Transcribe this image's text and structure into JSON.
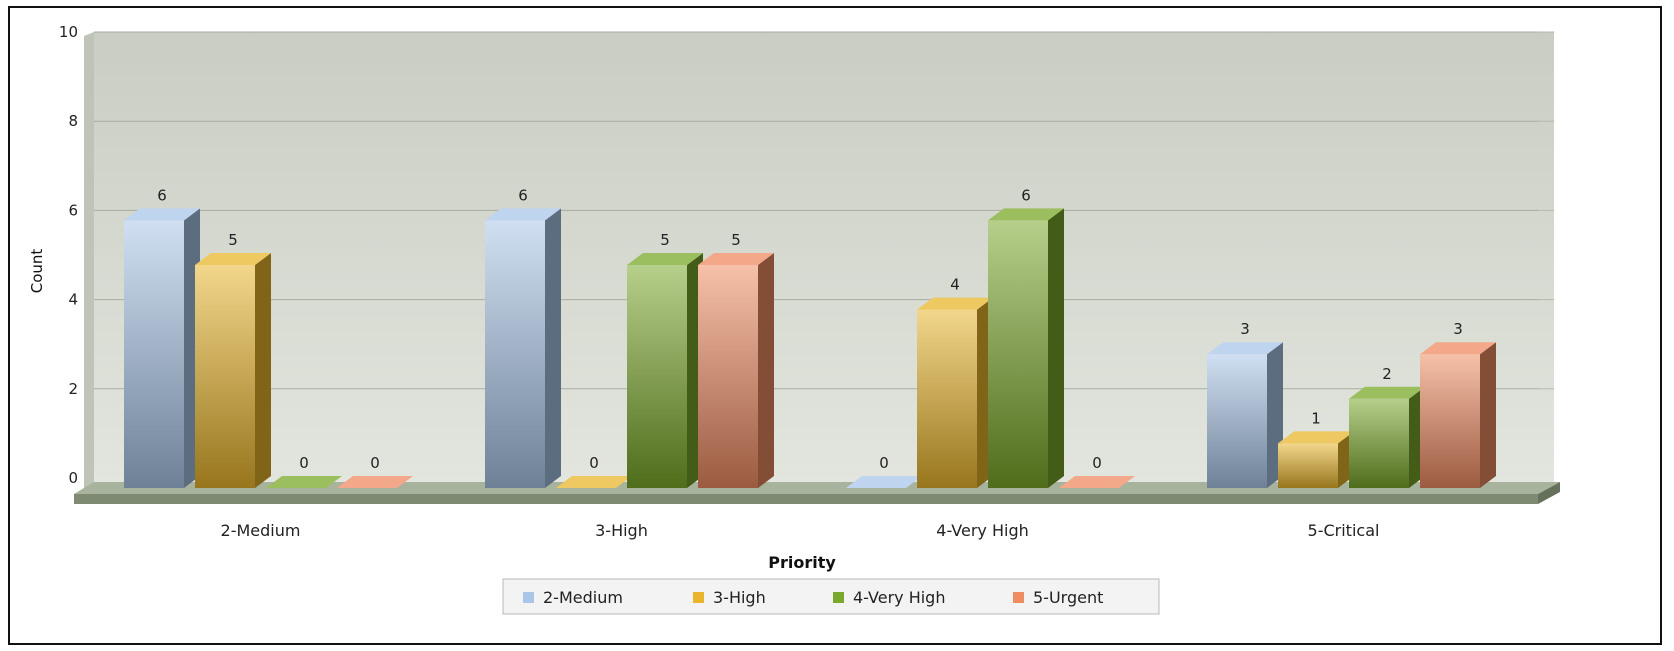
{
  "chart_data": {
    "type": "bar",
    "title": "",
    "xlabel": "Priority",
    "ylabel": "Count",
    "ylim": [
      0,
      10
    ],
    "yticks": [
      0,
      2,
      4,
      6,
      8,
      10
    ],
    "grid": true,
    "legend_position": "bottom",
    "categories": [
      "2-Medium",
      "3-High",
      "4-Very High",
      "5-Critical"
    ],
    "series": [
      {
        "name": "2-Medium",
        "color": "#a9c6e8",
        "values": [
          6,
          6,
          0,
          3
        ]
      },
      {
        "name": "3-High",
        "color": "#e8b52c",
        "values": [
          5,
          0,
          4,
          1
        ]
      },
      {
        "name": "4-Very High",
        "color": "#7aa82a",
        "values": [
          0,
          5,
          6,
          2
        ]
      },
      {
        "name": "5-Urgent",
        "color": "#ef8c62",
        "values": [
          0,
          5,
          0,
          3
        ]
      }
    ]
  }
}
